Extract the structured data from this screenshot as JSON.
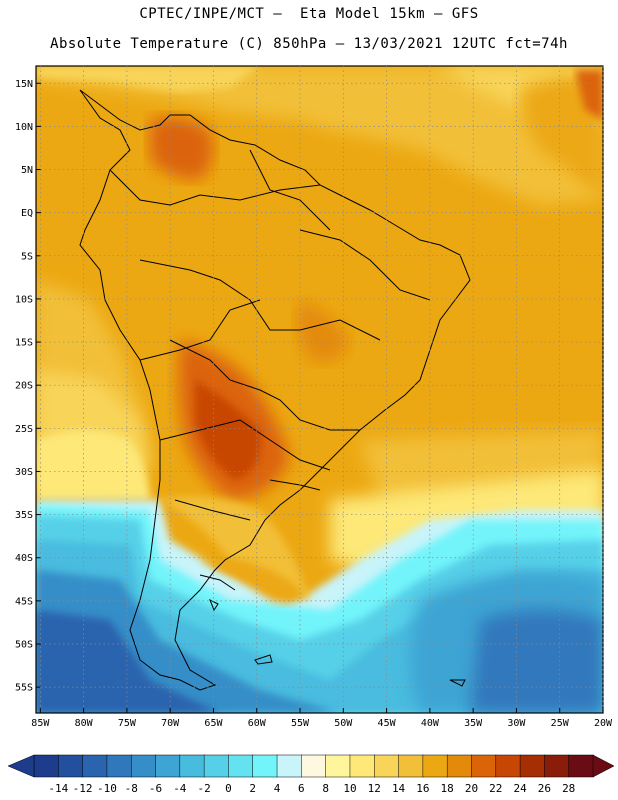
{
  "title_line1": "CPTEC/INPE/MCT –  Eta Model 15km – GFS",
  "title_line2": "Absolute Temperature (C) 850hPa – 13/03/2021 12UTC fct=74h",
  "map": {
    "lat_labels": [
      "15N",
      "10N",
      "5N",
      "EQ",
      "5S",
      "10S",
      "15S",
      "20S",
      "25S",
      "30S",
      "35S",
      "40S",
      "45S",
      "50S",
      "55S"
    ],
    "lat_values": [
      15,
      10,
      5,
      0,
      -5,
      -10,
      -15,
      -20,
      -25,
      -30,
      -35,
      -40,
      -45,
      -50,
      -55
    ],
    "lon_labels": [
      "85W",
      "80W",
      "75W",
      "70W",
      "65W",
      "60W",
      "55W",
      "50W",
      "45W",
      "40W",
      "35W",
      "30W",
      "25W",
      "20W"
    ],
    "lon_values": [
      -85,
      -80,
      -75,
      -70,
      -65,
      -60,
      -55,
      -50,
      -45,
      -40,
      -35,
      -30,
      -25,
      -20
    ],
    "lon_range": [
      -85.5,
      -20
    ],
    "lat_range": [
      -58,
      17
    ],
    "grid": "dotted"
  },
  "colorbar": {
    "labels": [
      "-14",
      "-12",
      "-10",
      "-8",
      "-6",
      "-4",
      "-2",
      "0",
      "2",
      "4",
      "6",
      "8",
      "10",
      "12",
      "14",
      "16",
      "18",
      "20",
      "22",
      "24",
      "26",
      "28"
    ],
    "colors": [
      "#1e3c8c",
      "#22509e",
      "#2a64ae",
      "#3078bc",
      "#368ec8",
      "#3ea4d4",
      "#48bcdf",
      "#56d0e8",
      "#64e2f0",
      "#72f4fa",
      "#c8f4fa",
      "#fff8e0",
      "#fff59c",
      "#fde878",
      "#f8d458",
      "#f2bf38",
      "#eca812",
      "#e48a0a",
      "#dc6408",
      "#c84604",
      "#a52e02",
      "#8a1c0a",
      "#6a0c14"
    ]
  }
}
